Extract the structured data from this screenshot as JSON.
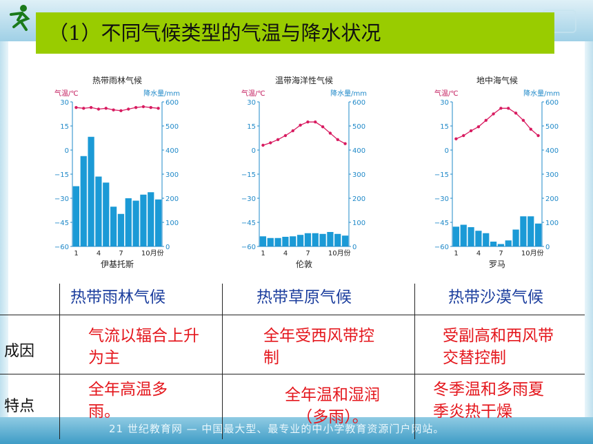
{
  "slide": {
    "title": "（1）不同气候类型的气温与降水状况",
    "footer": "21 世纪教育网 — 中国最大型、最专业的中小学教育资源门户网站。"
  },
  "chart_data": [
    {
      "type": "bar",
      "title": "热带雨林气候",
      "station": "伊基托斯",
      "y_left_label": "气温/℃",
      "y_right_label": "降水量/mm",
      "x_ticks": [
        "1",
        "4",
        "7",
        "10月份"
      ],
      "temp_ticks": [
        "30",
        "15",
        "0",
        "−15",
        "−30",
        "−45",
        "−60"
      ],
      "precip_ticks": [
        "600",
        "500",
        "400",
        "300",
        "200",
        "100",
        "0"
      ],
      "temp_range": [
        -60,
        30
      ],
      "precip_range": [
        0,
        600
      ],
      "categories": [
        "1",
        "2",
        "3",
        "4",
        "5",
        "6",
        "7",
        "8",
        "9",
        "10",
        "11",
        "12"
      ],
      "series": [
        {
          "kind": "bar",
          "unit": "mm",
          "values": [
            250,
            375,
            455,
            290,
            265,
            165,
            135,
            200,
            190,
            215,
            225,
            195
          ]
        },
        {
          "kind": "line",
          "unit": "℃",
          "values": [
            26.5,
            26,
            26.5,
            25.5,
            26,
            25,
            24.5,
            25.5,
            26.5,
            27,
            26.5,
            26
          ]
        }
      ]
    },
    {
      "type": "bar",
      "title": "温带海洋性气候",
      "station": "伦敦",
      "y_left_label": "气温/℃",
      "y_right_label": "降水量/mm",
      "x_ticks": [
        "1",
        "4",
        "7",
        "10月份"
      ],
      "temp_ticks": [
        "30",
        "15",
        "0",
        "−15",
        "−30",
        "−45",
        "−60"
      ],
      "precip_ticks": [
        "600",
        "500",
        "400",
        "300",
        "200",
        "100",
        "0"
      ],
      "temp_range": [
        -60,
        30
      ],
      "precip_range": [
        0,
        600
      ],
      "categories": [
        "1",
        "2",
        "3",
        "4",
        "5",
        "6",
        "7",
        "8",
        "9",
        "10",
        "11",
        "12"
      ],
      "series": [
        {
          "kind": "bar",
          "unit": "mm",
          "values": [
            42,
            35,
            35,
            40,
            42,
            48,
            55,
            55,
            52,
            60,
            52,
            45
          ]
        },
        {
          "kind": "line",
          "unit": "℃",
          "values": [
            3,
            4.5,
            6.5,
            9,
            12,
            15.5,
            17.5,
            17.5,
            14.5,
            10.5,
            6.5,
            4
          ]
        }
      ]
    },
    {
      "type": "bar",
      "title": "地中海气候",
      "station": "罗马",
      "y_left_label": "气温/℃",
      "y_right_label": "降水量/mm",
      "x_ticks": [
        "1",
        "4",
        "7",
        "10月份"
      ],
      "temp_ticks": [
        "30",
        "15",
        "0",
        "−15",
        "−30",
        "−45",
        "−60"
      ],
      "precip_ticks": [
        "600",
        "500",
        "400",
        "300",
        "200",
        "100",
        "0"
      ],
      "temp_range": [
        -60,
        30
      ],
      "precip_range": [
        0,
        600
      ],
      "categories": [
        "1",
        "2",
        "3",
        "4",
        "5",
        "6",
        "7",
        "8",
        "9",
        "10",
        "11",
        "12"
      ],
      "series": [
        {
          "kind": "bar",
          "unit": "mm",
          "values": [
            82,
            90,
            80,
            65,
            55,
            20,
            10,
            25,
            70,
            125,
            125,
            95
          ]
        },
        {
          "kind": "line",
          "unit": "℃",
          "values": [
            7,
            9,
            12,
            14.5,
            18.5,
            22.5,
            26,
            26,
            23,
            18.5,
            13,
            9
          ]
        }
      ]
    }
  ],
  "table": {
    "headers": [
      "热带雨林气候",
      "热带草原气候",
      "热带沙漠气候"
    ],
    "rows": [
      {
        "label": "成因",
        "cells": [
          "气流以辐合上升为主",
          "全年受西风带控制",
          "受副高和西风带交替控制"
        ]
      },
      {
        "label": "特点",
        "cells": [
          "全年高温多雨。",
          "全年温和湿润（多雨）。",
          "冬季温和多雨夏季炎热干燥"
        ]
      }
    ]
  }
}
